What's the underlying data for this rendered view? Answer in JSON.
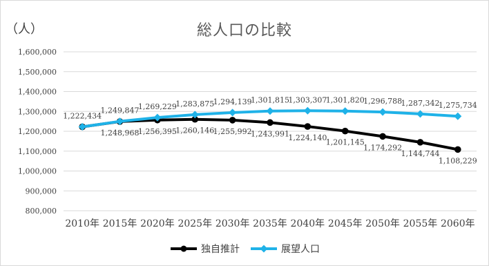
{
  "chart_data": {
    "type": "line",
    "title": "総人口の比較",
    "unit_label": "（人）",
    "categories": [
      "2010年",
      "2015年",
      "2020年",
      "2025年",
      "2030年",
      "2035年",
      "2040年",
      "2045年",
      "2050年",
      "2055年",
      "2060年"
    ],
    "ylim": [
      800000,
      1600000
    ],
    "yticks": [
      "800,000",
      "900,000",
      "1,000,000",
      "1,100,000",
      "1,200,000",
      "1,300,000",
      "1,400,000",
      "1,500,000",
      "1,600,000"
    ],
    "ytick_values": [
      800000,
      900000,
      1000000,
      1100000,
      1200000,
      1300000,
      1400000,
      1500000,
      1600000
    ],
    "grid": true,
    "legend_position": "bottom",
    "series": [
      {
        "name": "独自推計",
        "color": "#000000",
        "marker": "circle",
        "values": [
          1222434,
          1248968,
          1256395,
          1260146,
          1255992,
          1243991,
          1224140,
          1201145,
          1174292,
          1144744,
          1108229
        ],
        "labels": [
          "",
          "1,248,968",
          "1,256,395",
          "1,260,146",
          "1,255,992",
          "1,243,991",
          "1,224,140",
          "1,201,145",
          "1,174,292",
          "1,144,744",
          "1,108,229"
        ]
      },
      {
        "name": "展望人口",
        "color": "#1fb2e8",
        "marker": "diamond",
        "values": [
          1222434,
          1249847,
          1269229,
          1283875,
          1294139,
          1301815,
          1303307,
          1301820,
          1296788,
          1287342,
          1275734
        ],
        "labels": [
          "1,222,434",
          "1,249,847",
          "1,269,229",
          "1,283,875",
          "1,294,139",
          "1,301,815",
          "1,303,307",
          "1,301,820",
          "1,296,788",
          "1,287,342",
          "1,275,734"
        ]
      }
    ]
  }
}
